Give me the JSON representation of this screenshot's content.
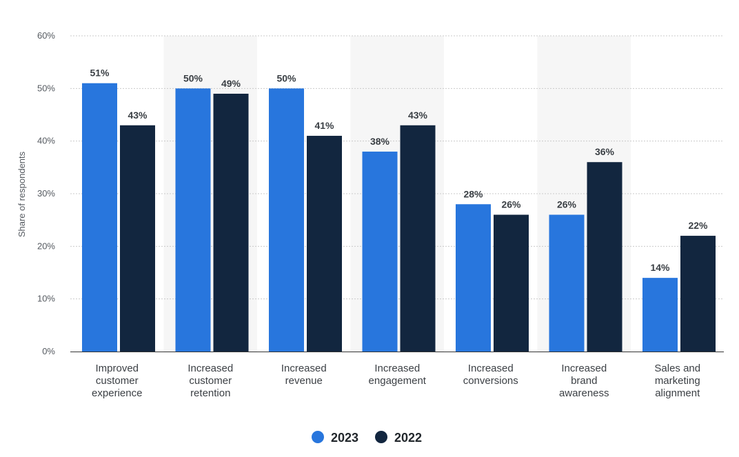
{
  "chart_data": {
    "type": "bar",
    "title": "",
    "xlabel": "",
    "ylabel": "Share of respondents",
    "ylim": [
      0,
      60
    ],
    "yticks": [
      "0%",
      "10%",
      "20%",
      "30%",
      "40%",
      "50%",
      "60%"
    ],
    "ytick_values": [
      0,
      10,
      20,
      30,
      40,
      50,
      60
    ],
    "grid": true,
    "legend_position": "bottom-center",
    "categories": [
      [
        "Improved",
        "customer",
        "experience"
      ],
      [
        "Increased",
        "customer",
        "retention"
      ],
      [
        "Increased",
        "revenue"
      ],
      [
        "Increased",
        "engagement"
      ],
      [
        "Increased",
        "conversions"
      ],
      [
        "Increased",
        "brand",
        "awareness"
      ],
      [
        "Sales and",
        "marketing",
        "alignment"
      ]
    ],
    "series": [
      {
        "name": "2023",
        "color": "#2876dd",
        "values": [
          51,
          50,
          50,
          38,
          28,
          26,
          14
        ],
        "labels": [
          "51%",
          "50%",
          "50%",
          "38%",
          "28%",
          "26%",
          "14%"
        ]
      },
      {
        "name": "2022",
        "color": "#12263f",
        "values": [
          43,
          49,
          41,
          43,
          26,
          36,
          22
        ],
        "labels": [
          "43%",
          "49%",
          "41%",
          "43%",
          "26%",
          "36%",
          "22%"
        ]
      }
    ]
  },
  "colors": {
    "band": "#f6f6f6",
    "grid": "#c9c9c9",
    "axis": "#333333"
  }
}
